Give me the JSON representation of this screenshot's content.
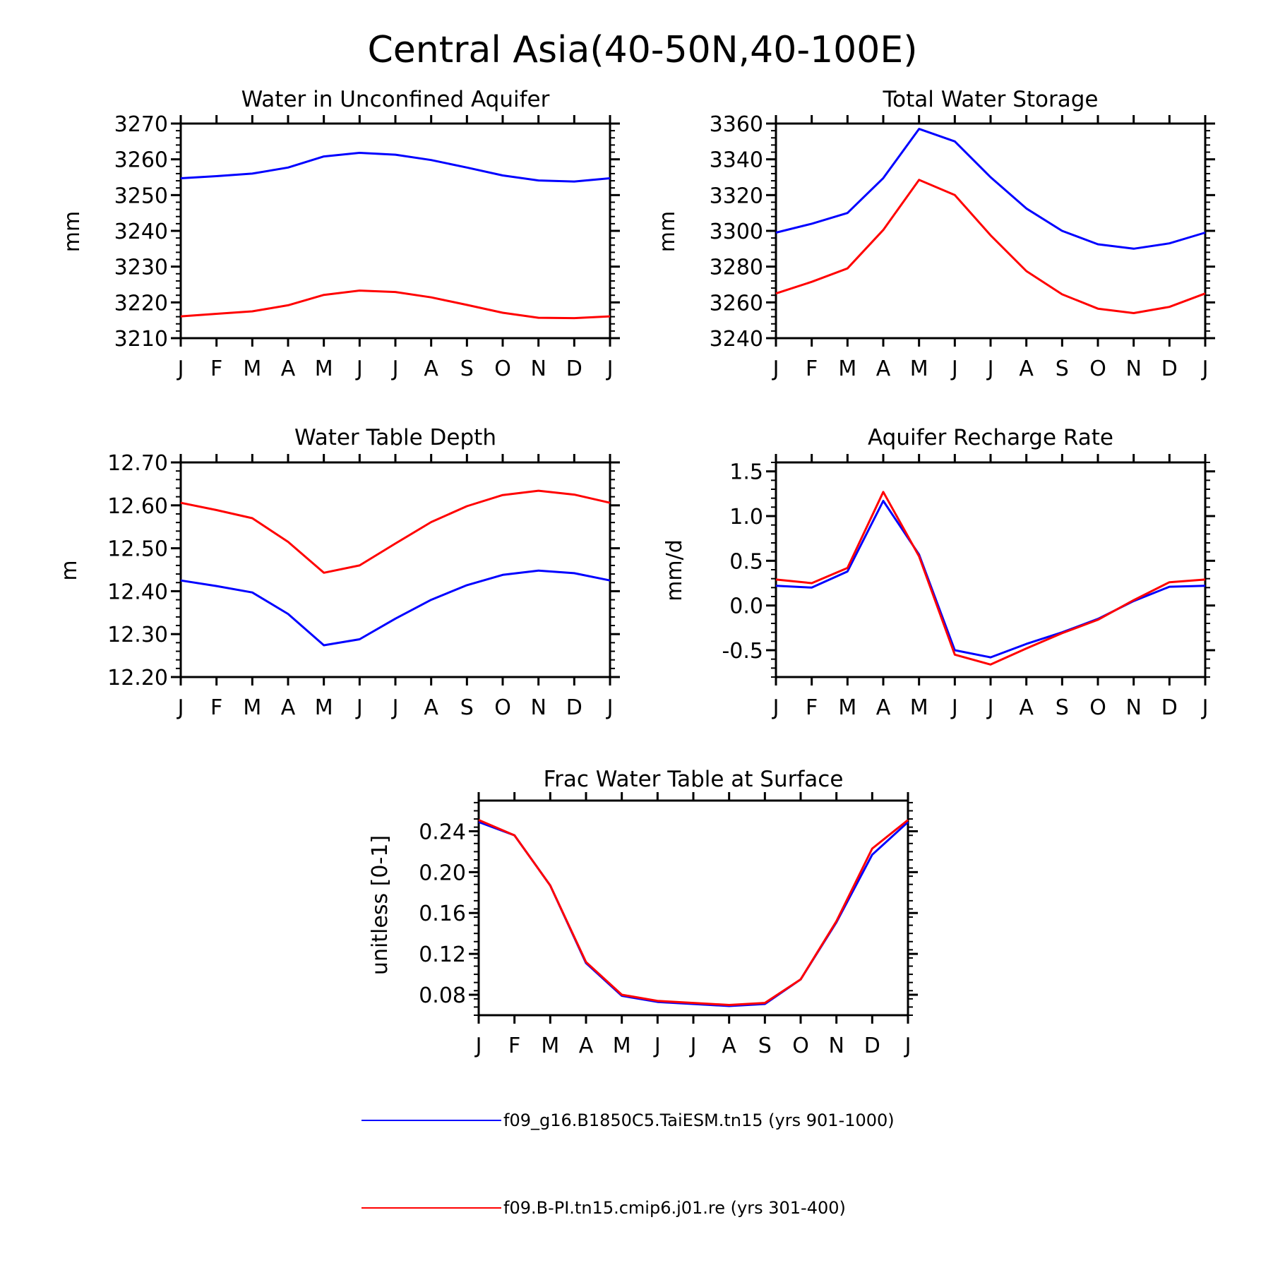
{
  "title": "Central Asia(40-50N,40-100E)",
  "colors": {
    "run1": "#0000ff",
    "run2": "#ff0000"
  },
  "legend": [
    {
      "label": "f09_g16.B1850C5.TaiESM.tn15 (yrs 901-1000)",
      "color": "#0000ff"
    },
    {
      "label": "f09.B-PI.tn15.cmip6.j01.re (yrs 301-400)",
      "color": "#ff0000"
    }
  ],
  "chart_data": [
    {
      "type": "line",
      "title": "Water in Unconfined Aquifer",
      "ylabel": "mm",
      "categories": [
        "J",
        "F",
        "M",
        "A",
        "M",
        "J",
        "J",
        "A",
        "S",
        "O",
        "N",
        "D",
        "J"
      ],
      "ylim": [
        3210,
        3270
      ],
      "yticks": [
        3210,
        3220,
        3230,
        3240,
        3250,
        3260,
        3270
      ],
      "ytick_labels": [
        "3210",
        "3220",
        "3230",
        "3240",
        "3250",
        "3260",
        "3270"
      ],
      "series": [
        {
          "color": "#0000ff",
          "values": [
            3254.7,
            3255.3,
            3256.0,
            3257.7,
            3260.8,
            3261.8,
            3261.3,
            3259.8,
            3257.7,
            3255.5,
            3254.1,
            3253.8,
            3254.7
          ]
        },
        {
          "color": "#ff0000",
          "values": [
            3216.1,
            3216.8,
            3217.5,
            3219.2,
            3222.1,
            3223.3,
            3222.9,
            3221.4,
            3219.3,
            3217.1,
            3215.7,
            3215.6,
            3216.1
          ]
        }
      ]
    },
    {
      "type": "line",
      "title": "Total Water Storage",
      "ylabel": "mm",
      "categories": [
        "J",
        "F",
        "M",
        "A",
        "M",
        "J",
        "J",
        "A",
        "S",
        "O",
        "N",
        "D",
        "J"
      ],
      "ylim": [
        3240,
        3360
      ],
      "yticks": [
        3240,
        3260,
        3280,
        3300,
        3320,
        3340,
        3360
      ],
      "ytick_labels": [
        "3240",
        "3260",
        "3280",
        "3300",
        "3320",
        "3340",
        "3360"
      ],
      "series": [
        {
          "color": "#0000ff",
          "values": [
            3299,
            3304,
            3310,
            3329.5,
            3357,
            3350,
            3330,
            3312.5,
            3300,
            3292.5,
            3290,
            3293,
            3299
          ]
        },
        {
          "color": "#ff0000",
          "values": [
            3265,
            3271.5,
            3279,
            3300.5,
            3328.5,
            3320,
            3297.5,
            3277.5,
            3264.5,
            3256.5,
            3254,
            3257.5,
            3265
          ]
        }
      ]
    },
    {
      "type": "line",
      "title": "Water Table Depth",
      "ylabel": "m",
      "categories": [
        "J",
        "F",
        "M",
        "A",
        "M",
        "J",
        "J",
        "A",
        "S",
        "O",
        "N",
        "D",
        "J"
      ],
      "ylim": [
        12.2,
        12.7
      ],
      "yticks": [
        12.2,
        12.3,
        12.4,
        12.5,
        12.6,
        12.7
      ],
      "ytick_labels": [
        "12.20",
        "12.30",
        "12.40",
        "12.50",
        "12.60",
        "12.70"
      ],
      "series": [
        {
          "color": "#0000ff",
          "values": [
            12.425,
            12.412,
            12.397,
            12.347,
            12.274,
            12.288,
            12.336,
            12.38,
            12.414,
            12.438,
            12.448,
            12.442,
            12.425
          ]
        },
        {
          "color": "#ff0000",
          "values": [
            12.606,
            12.589,
            12.57,
            12.515,
            12.443,
            12.46,
            12.511,
            12.561,
            12.598,
            12.624,
            12.634,
            12.625,
            12.606
          ]
        }
      ]
    },
    {
      "type": "line",
      "title": "Aquifer Recharge Rate",
      "ylabel": "mm/d",
      "categories": [
        "J",
        "F",
        "M",
        "A",
        "M",
        "J",
        "J",
        "A",
        "S",
        "O",
        "N",
        "D",
        "J"
      ],
      "ylim": [
        -0.8,
        1.6
      ],
      "yticks": [
        -0.5,
        0.0,
        0.5,
        1.0,
        1.5
      ],
      "ytick_labels": [
        "-0.5",
        "0.0",
        "0.5",
        "1.0",
        "1.5"
      ],
      "series": [
        {
          "color": "#0000ff",
          "values": [
            0.22,
            0.2,
            0.38,
            1.17,
            0.57,
            -0.5,
            -0.58,
            -0.43,
            -0.3,
            -0.15,
            0.05,
            0.21,
            0.22
          ]
        },
        {
          "color": "#ff0000",
          "values": [
            0.29,
            0.25,
            0.42,
            1.27,
            0.55,
            -0.55,
            -0.66,
            -0.48,
            -0.31,
            -0.16,
            0.06,
            0.26,
            0.29
          ]
        }
      ]
    },
    {
      "type": "line",
      "title": "Frac Water Table at Surface",
      "ylabel": "unitless [0-1]",
      "categories": [
        "J",
        "F",
        "M",
        "A",
        "M",
        "J",
        "J",
        "A",
        "S",
        "O",
        "N",
        "D",
        "J"
      ],
      "ylim": [
        0.06,
        0.27
      ],
      "yticks": [
        0.08,
        0.12,
        0.16,
        0.2,
        0.24
      ],
      "ytick_labels": [
        "0.08",
        "0.12",
        "0.16",
        "0.20",
        "0.24"
      ],
      "series": [
        {
          "color": "#0000ff",
          "values": [
            0.249,
            0.236,
            0.187,
            0.111,
            0.079,
            0.073,
            0.071,
            0.069,
            0.071,
            0.095,
            0.151,
            0.217,
            0.249
          ]
        },
        {
          "color": "#ff0000",
          "values": [
            0.251,
            0.236,
            0.187,
            0.112,
            0.08,
            0.074,
            0.072,
            0.07,
            0.072,
            0.095,
            0.152,
            0.223,
            0.251
          ]
        }
      ]
    }
  ]
}
